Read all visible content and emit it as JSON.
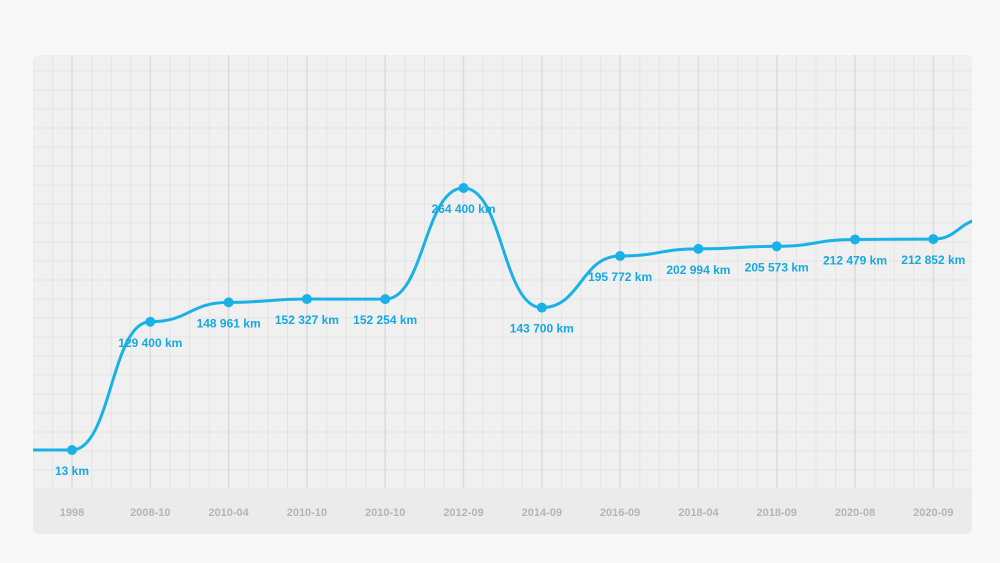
{
  "colors": {
    "line": "#1ab2e6",
    "label": "#16a9df",
    "tick": "#b5b5b5"
  },
  "chart_data": {
    "type": "line",
    "title": "",
    "xlabel": "",
    "ylabel": "",
    "grid": true,
    "y_axis_labels_shown": false,
    "smooth": true,
    "ylim": [
      0,
      400000
    ],
    "categories": [
      "1998",
      "2008-10",
      "2010-04",
      "2010-10",
      "2010-10",
      "2012-09",
      "2014-09",
      "2016-09",
      "2018-04",
      "2018-09",
      "2020-08",
      "2020-09"
    ],
    "values": [
      13,
      129400,
      148961,
      152327,
      152254,
      264400,
      143700,
      195772,
      202994,
      205573,
      212479,
      212852
    ],
    "labels": [
      "13 km",
      "129 400 km",
      "148 961 km",
      "152 327 km",
      "152 254 km",
      "264 400 km",
      "143 700 km",
      "195 772 km",
      "202 994 km",
      "205 573 km",
      "212 479 km",
      "212 852 km"
    ]
  }
}
